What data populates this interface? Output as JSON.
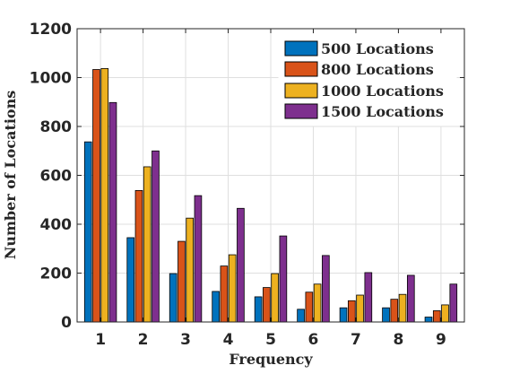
{
  "chart_data": {
    "type": "bar",
    "title": "",
    "xlabel": "Frequency",
    "ylabel": "Number of Locations",
    "categories": [
      "1",
      "2",
      "3",
      "4",
      "5",
      "6",
      "7",
      "8",
      "9"
    ],
    "ylim": [
      0,
      1200
    ],
    "yticks": [
      "0",
      "200",
      "400",
      "600",
      "800",
      "1000",
      "1200"
    ],
    "grid": true,
    "legend_position": "top-right",
    "series": [
      {
        "name": "500 Locations",
        "color": "#0072BD",
        "values": [
          737,
          345,
          198,
          125,
          103,
          52,
          58,
          58,
          20
        ]
      },
      {
        "name": "800 Locations",
        "color": "#D95319",
        "values": [
          1033,
          538,
          330,
          229,
          141,
          122,
          87,
          93,
          46
        ]
      },
      {
        "name": "1000 Locations",
        "color": "#EDB120",
        "values": [
          1037,
          635,
          425,
          275,
          198,
          155,
          110,
          113,
          70
        ]
      },
      {
        "name": "1500 Locations",
        "color": "#7E2F8E",
        "values": [
          898,
          700,
          517,
          465,
          352,
          272,
          202,
          191,
          155
        ]
      }
    ]
  }
}
